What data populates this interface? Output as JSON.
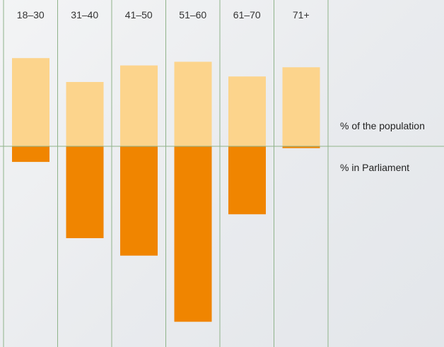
{
  "chart_data": {
    "type": "bar",
    "categories": [
      "18–30",
      "31–40",
      "41–50",
      "51–60",
      "61–70",
      "71+"
    ],
    "series": [
      {
        "name": "% of the population",
        "values": [
          9.6,
          7.0,
          8.8,
          9.2,
          7.6,
          8.6
        ],
        "color": "#fcd48c"
      },
      {
        "name": "% in Parliament",
        "values": [
          1.7,
          10.0,
          11.9,
          19.1,
          7.4,
          0.2
        ],
        "color": "#f08500"
      }
    ],
    "layout": "diverging",
    "grid": "vertical lines between categories",
    "baseline_color": "#8fb38a",
    "gridline_color": "#8fb38a",
    "legend": "labels at right of baseline"
  }
}
